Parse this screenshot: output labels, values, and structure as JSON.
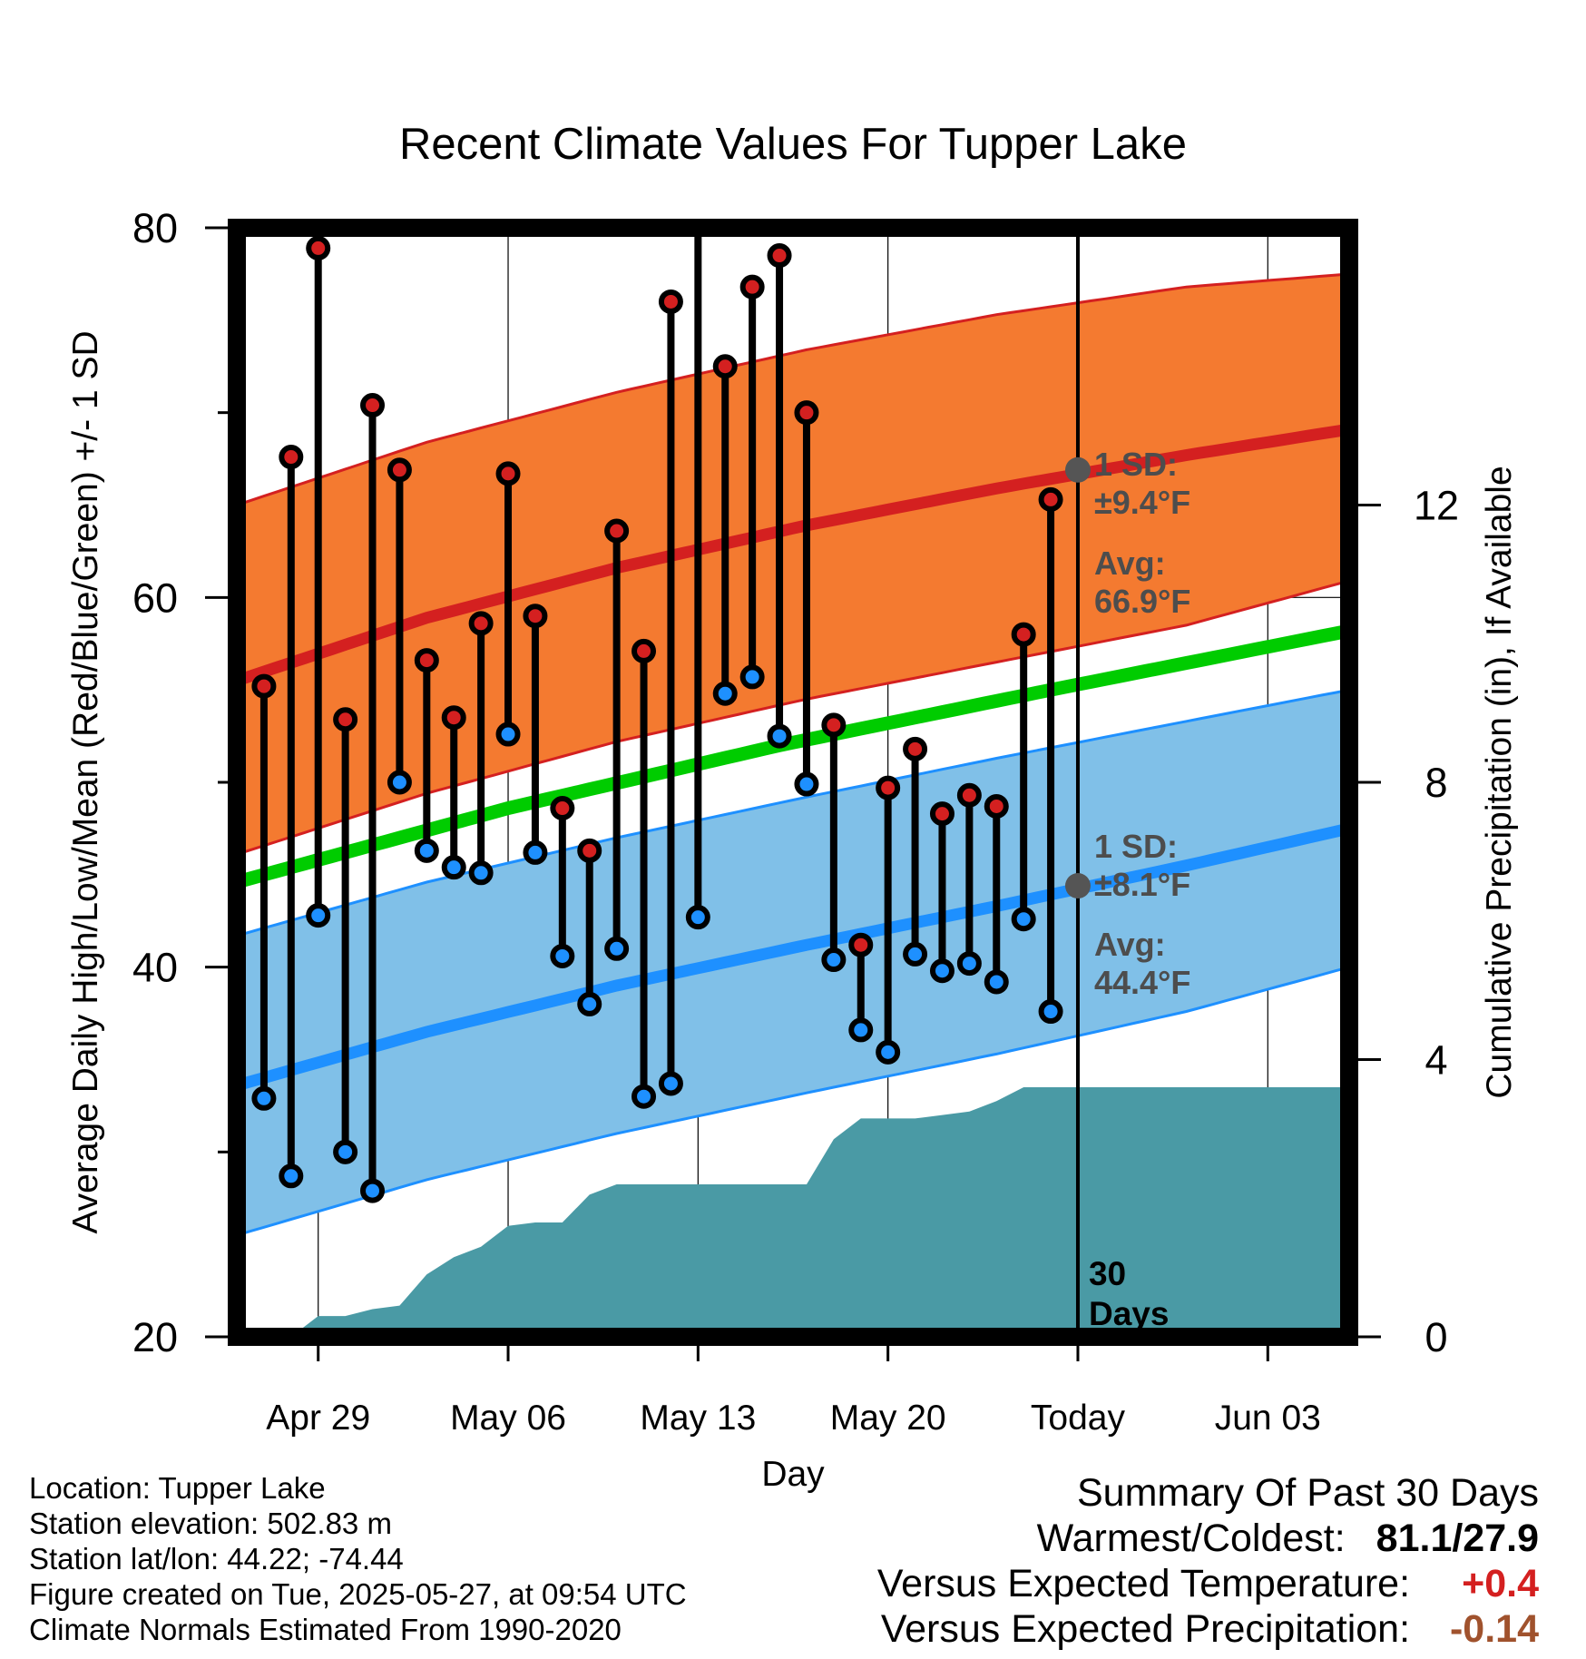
{
  "chart_data": {
    "type": "line",
    "title": "Recent Climate Values For Tupper Lake",
    "xlabel": "Day",
    "ylabel": "Average Daily High/Low/Mean (Red/Blue/Green) +/- 1 SD",
    "y2label": "Cumulative Precipitation (in), If Available",
    "ylim": [
      20,
      80
    ],
    "y_ticks": [
      20,
      40,
      60,
      80
    ],
    "y2lim": [
      0,
      16
    ],
    "y2_ticks": [
      0,
      4,
      8,
      12
    ],
    "x_tick_labels": [
      "Apr 29",
      "May 06",
      "May 13",
      "May 20",
      "Today",
      "Jun 03"
    ],
    "x_tick_dates": [
      "2025-04-29",
      "2025-05-06",
      "2025-05-13",
      "2025-05-20",
      "2025-05-27",
      "2025-06-03"
    ],
    "x_range": [
      "2025-04-26",
      "2025-06-06"
    ],
    "today": "2025-05-27",
    "period_label_line1": "30",
    "period_label_line2": "Days",
    "normal_high": {
      "dates": [
        "2025-04-26",
        "2025-05-03",
        "2025-05-10",
        "2025-05-17",
        "2025-05-24",
        "2025-05-31",
        "2025-06-06"
      ],
      "mean": [
        55.5,
        58.9,
        61.6,
        63.9,
        65.9,
        67.7,
        69.1
      ],
      "upper": [
        65.0,
        68.4,
        71.1,
        73.4,
        75.3,
        76.8,
        77.5
      ],
      "lower": [
        46.1,
        49.4,
        52.2,
        54.5,
        56.5,
        58.5,
        60.9
      ],
      "annotation_sd_label": "1 SD:",
      "annotation_sd": "±9.4°F",
      "annotation_avg_label": "Avg:",
      "annotation_avg": "66.9°F",
      "today_value": 66.9,
      "color": "#d42020",
      "band_color": "#f47a30"
    },
    "normal_low": {
      "dates": [
        "2025-04-26",
        "2025-05-03",
        "2025-05-10",
        "2025-05-17",
        "2025-05-24",
        "2025-05-31",
        "2025-06-06"
      ],
      "mean": [
        33.6,
        36.5,
        39.0,
        41.2,
        43.3,
        45.5,
        47.5
      ],
      "upper": [
        41.7,
        44.6,
        47.0,
        49.2,
        51.3,
        53.3,
        55.0
      ],
      "lower": [
        25.5,
        28.5,
        31.0,
        33.2,
        35.3,
        37.6,
        40.0
      ],
      "annotation_sd_label": "1 SD:",
      "annotation_sd": "±8.1°F",
      "annotation_avg_label": "Avg:",
      "annotation_avg": "44.4°F",
      "today_value": 44.4,
      "color": "#1e90ff",
      "band_color": "#80c0e8"
    },
    "normal_mean": {
      "dates": [
        "2025-04-26",
        "2025-05-06",
        "2025-05-16",
        "2025-05-26",
        "2025-06-06"
      ],
      "values": [
        44.6,
        48.6,
        52.0,
        55.0,
        58.2
      ],
      "color": "#00cc00"
    },
    "observed": {
      "dates": [
        "2025-04-27",
        "2025-04-28",
        "2025-04-29",
        "2025-04-30",
        "2025-05-01",
        "2025-05-02",
        "2025-05-03",
        "2025-05-04",
        "2025-05-05",
        "2025-05-06",
        "2025-05-07",
        "2025-05-08",
        "2025-05-09",
        "2025-05-10",
        "2025-05-11",
        "2025-05-12",
        "2025-05-13",
        "2025-05-14",
        "2025-05-15",
        "2025-05-16",
        "2025-05-17",
        "2025-05-18",
        "2025-05-19",
        "2025-05-20",
        "2025-05-21",
        "2025-05-22",
        "2025-05-23",
        "2025-05-24",
        "2025-05-25",
        "2025-05-26"
      ],
      "highs": [
        55.2,
        67.6,
        78.9,
        53.4,
        70.4,
        66.9,
        56.6,
        53.5,
        58.6,
        66.7,
        59.0,
        48.6,
        46.3,
        63.6,
        57.1,
        76.0,
        81.1,
        72.5,
        76.8,
        78.5,
        70.0,
        53.1,
        41.2,
        49.7,
        51.8,
        48.3,
        49.3,
        48.7,
        58.0,
        65.3
      ],
      "lows": [
        32.9,
        28.7,
        42.8,
        30.0,
        27.9,
        50.0,
        46.3,
        45.4,
        45.1,
        52.6,
        46.2,
        40.6,
        38.0,
        41.0,
        33.0,
        33.7,
        42.7,
        54.8,
        55.7,
        52.5,
        49.9,
        40.4,
        36.6,
        35.4,
        40.7,
        39.8,
        40.2,
        39.2,
        42.6,
        37.6
      ],
      "high_color": "#d42020",
      "low_color": "#1e90ff"
    },
    "precipitation": {
      "dates": [
        "2025-04-28",
        "2025-04-29",
        "2025-04-30",
        "2025-05-01",
        "2025-05-02",
        "2025-05-03",
        "2025-05-04",
        "2025-05-05",
        "2025-05-06",
        "2025-05-07",
        "2025-05-08",
        "2025-05-09",
        "2025-05-10",
        "2025-05-11",
        "2025-05-12",
        "2025-05-13",
        "2025-05-14",
        "2025-05-15",
        "2025-05-16",
        "2025-05-17",
        "2025-05-18",
        "2025-05-19",
        "2025-05-20",
        "2025-05-21",
        "2025-05-22",
        "2025-05-23",
        "2025-05-24",
        "2025-05-25",
        "2025-05-26",
        "2025-05-27",
        "2025-06-06"
      ],
      "values": [
        0.0,
        0.3,
        0.3,
        0.4,
        0.45,
        0.9,
        1.15,
        1.3,
        1.6,
        1.65,
        1.65,
        2.05,
        2.2,
        2.2,
        2.2,
        2.2,
        2.2,
        2.2,
        2.2,
        2.2,
        2.85,
        3.15,
        3.15,
        3.15,
        3.2,
        3.25,
        3.4,
        3.6,
        3.6,
        3.6,
        3.6
      ],
      "color": "#4a9aa5"
    },
    "grid": true
  },
  "footer": {
    "location": "Location: Tupper Lake",
    "elevation": "Station elevation: 502.83 m",
    "latlon": "Station lat/lon: 44.22; -74.44",
    "created": "Figure created on Tue, 2025-05-27, at 09:54 UTC",
    "normals": "Climate Normals Estimated From 1990-2020"
  },
  "summary": {
    "title": "Summary Of Past 30 Days",
    "warmest_coldest_label": "Warmest/Coldest:",
    "warmest_coldest_value": "81.1/27.9",
    "temp_label": "Versus Expected Temperature:",
    "temp_value": "+0.4",
    "precip_label": "Versus Expected Precipitation:",
    "precip_value": "-0.14",
    "temp_color": "#d42020",
    "precip_color": "#a0522d"
  }
}
